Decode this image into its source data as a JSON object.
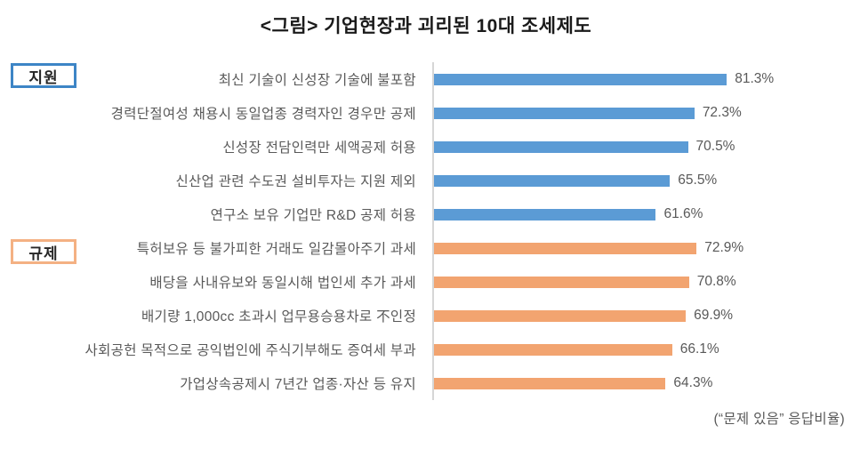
{
  "title": "<그림> 기업현장과 괴리된 10대 조세제도",
  "footnote": "(“문제 있음” 응답비율)",
  "groups": [
    {
      "label": "지원",
      "border_color": "#3d85c6"
    },
    {
      "label": "규제",
      "border_color": "#f4b183"
    }
  ],
  "chart_data": {
    "type": "bar",
    "orientation": "horizontal",
    "unit": "%",
    "value_suffix": "%",
    "xlim": [
      0,
      100
    ],
    "grid": false,
    "legend": "none",
    "axis_line_color": "#d6d6d6",
    "series": [
      {
        "name": "지원",
        "color": "#5b9bd5",
        "items": [
          {
            "label": "최신 기술이 신성장 기술에 불포함",
            "value": 81.3
          },
          {
            "label": "경력단절여성 채용시 동일업종 경력자인 경우만 공제",
            "value": 72.3
          },
          {
            "label": "신성장 전담인력만 세액공제 허용",
            "value": 70.5
          },
          {
            "label": "신산업 관련 수도권 설비투자는 지원 제외",
            "value": 65.5
          },
          {
            "label": "연구소 보유 기업만 R&D 공제 허용",
            "value": 61.6
          }
        ]
      },
      {
        "name": "규제",
        "color": "#f2a470",
        "items": [
          {
            "label": "특허보유 등 불가피한 거래도 일감몰아주기 과세",
            "value": 72.9
          },
          {
            "label": "배당을 사내유보와 동일시해 법인세 추가 과세",
            "value": 70.8
          },
          {
            "label": "배기량 1,000cc 초과시 업무용승용차로 不인정",
            "value": 69.9
          },
          {
            "label": "사회공헌 목적으로 공익법인에 주식기부해도 증여세 부과",
            "value": 66.1
          },
          {
            "label": "가업상속공제시 7년간 업종·자산 등 유지",
            "value": 64.3
          }
        ]
      }
    ]
  }
}
